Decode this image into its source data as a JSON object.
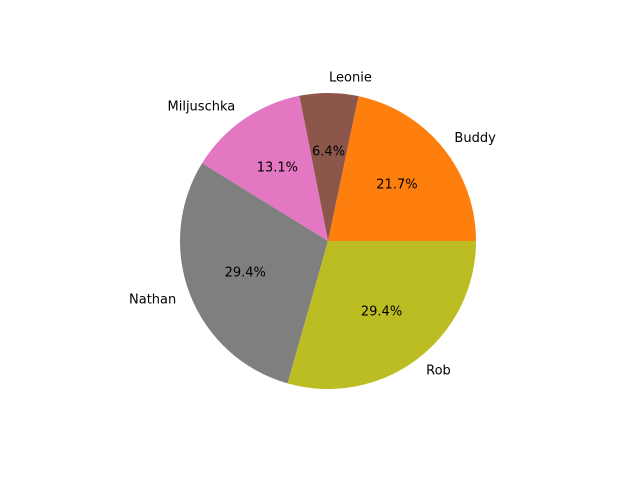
{
  "chart_data": {
    "type": "pie",
    "title": "",
    "start_angle_deg": 0,
    "direction": "counterclockwise",
    "slices": [
      {
        "label": "Buddy",
        "percent": 21.7,
        "pct_text": "21.7%",
        "color": "#ff7f0e"
      },
      {
        "label": "Leonie",
        "percent": 6.4,
        "pct_text": "6.4%",
        "color": "#8c564b"
      },
      {
        "label": "Miljuschka",
        "percent": 13.1,
        "pct_text": "13.1%",
        "color": "#e377c2"
      },
      {
        "label": "Nathan",
        "percent": 29.4,
        "pct_text": "29.4%",
        "color": "#7f7f7f"
      },
      {
        "label": "Rob",
        "percent": 29.4,
        "pct_text": "29.4%",
        "color": "#bcbd22"
      }
    ]
  }
}
